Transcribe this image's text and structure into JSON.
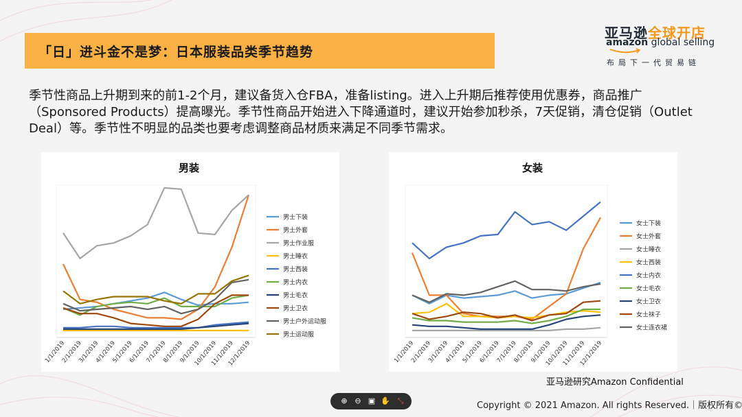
{
  "title": "「日」进斗金不是梦：日本服装品类季节趋势",
  "logo": {
    "cn_part1": "亚马逊",
    "cn_part2": "全球开店",
    "en_brand": "amazon",
    "en_rest": " global selling",
    "tagline": "布局下一代贸易链"
  },
  "body_text": "季节性商品上升期到来的前1-2个月，建议备货入仓FBA，准备listing。进入上升期后推荐使用优惠券，商品推广（Sponsored Products）提高曝光。季节性商品开始进入下降通道时，建议开始参加秒杀，7天促销，清仓促销（Outlet Deal）等。季节性不明显的品类也要考虑调整商品材质来满足不同季节需求。",
  "confidential": "亚马逊研究Amazon Confidential",
  "copyright": "Copyright © 2021 Amazon. All rights Reserved.｜版权所有© 2021",
  "toolbar": {
    "zoom_in": "⊕",
    "zoom_out": "⊖",
    "fit": "▣",
    "hand": "✋",
    "fullscreen": "⤡"
  },
  "chart_data": [
    {
      "type": "line",
      "title": "男装",
      "categories": [
        "1/1/2019",
        "2/1/2019",
        "3/1/2019",
        "4/1/2019",
        "5/1/2019",
        "6/1/2019",
        "7/1/2019",
        "8/1/2019",
        "9/1/2019",
        "10/1/2019",
        "11/1/2019",
        "12/1/2019"
      ],
      "ylim": [
        0,
        100
      ],
      "legend_position": "right",
      "series": [
        {
          "name": "男士下装",
          "color": "#5b9bd5",
          "values": [
            16,
            17,
            18,
            20,
            22,
            24,
            28,
            23,
            19,
            20,
            20,
            21
          ]
        },
        {
          "name": "男士外套",
          "color": "#ed7d31",
          "values": [
            48,
            23,
            21,
            16,
            13,
            10,
            10,
            9,
            16,
            32,
            60,
            97
          ]
        },
        {
          "name": "男士作业服",
          "color": "#a5a5a5",
          "values": [
            70,
            52,
            61,
            63,
            68,
            76,
            102,
            101,
            70,
            69,
            86,
            97
          ]
        },
        {
          "name": "男士睡衣",
          "color": "#ffc000",
          "values": [
            1,
            1,
            1,
            1,
            1,
            1,
            1,
            1,
            1,
            1,
            1,
            1
          ]
        },
        {
          "name": "男士西装",
          "color": "#4472c4",
          "values": [
            3,
            3,
            4,
            4,
            3,
            3,
            3,
            3,
            3,
            5,
            6,
            7
          ]
        },
        {
          "name": "男士内衣",
          "color": "#70ad47",
          "values": [
            17,
            12,
            18,
            20,
            21,
            20,
            24,
            18,
            18,
            18,
            24,
            26
          ]
        },
        {
          "name": "男士毛衣",
          "color": "#264478",
          "values": [
            2,
            2,
            2,
            2,
            2,
            2,
            2,
            2,
            3,
            4,
            5,
            6
          ]
        },
        {
          "name": "男士卫衣",
          "color": "#9e480e",
          "values": [
            17,
            13,
            13,
            10,
            6,
            5,
            4,
            4,
            9,
            20,
            26,
            26
          ]
        },
        {
          "name": "男士户外运动服",
          "color": "#636363",
          "values": [
            20,
            15,
            16,
            17,
            18,
            16,
            18,
            13,
            16,
            23,
            35,
            37
          ]
        },
        {
          "name": "男士运动服",
          "color": "#997300",
          "values": [
            29,
            20,
            23,
            25,
            25,
            25,
            22,
            20,
            27,
            27,
            36,
            40
          ]
        }
      ]
    },
    {
      "type": "line",
      "title": "女装",
      "categories": [
        "1/1/2019",
        "2/1/2019",
        "3/1/2019",
        "4/1/2019",
        "5/1/2019",
        "6/1/2019",
        "7/1/2019",
        "8/1/2019",
        "9/1/2019",
        "10/1/2019",
        "11/1/2019",
        "12/1/2019"
      ],
      "ylim": [
        0,
        100
      ],
      "legend_position": "right",
      "series": [
        {
          "name": "女士下装",
          "color": "#5b9bd5",
          "values": [
            26,
            20,
            26,
            24,
            25,
            26,
            29,
            24,
            26,
            27,
            31,
            35
          ]
        },
        {
          "name": "女士外套",
          "color": "#ed7d31",
          "values": [
            56,
            26,
            26,
            13,
            11,
            11,
            11,
            9,
            18,
            27,
            59,
            81
          ]
        },
        {
          "name": "女士睡衣",
          "color": "#a5a5a5",
          "values": [
            1,
            1,
            1,
            1,
            1,
            1,
            1,
            1,
            1,
            2,
            2,
            3
          ]
        },
        {
          "name": "女士西装",
          "color": "#ffc000",
          "values": [
            13,
            14,
            20,
            11,
            11,
            10,
            11,
            10,
            12,
            14,
            15,
            14
          ]
        },
        {
          "name": "女士内衣",
          "color": "#4472c4",
          "values": [
            63,
            52,
            60,
            63,
            68,
            69,
            85,
            76,
            78,
            72,
            82,
            92
          ]
        },
        {
          "name": "女士毛衣",
          "color": "#70ad47",
          "values": [
            10,
            8,
            8,
            7,
            7,
            7,
            8,
            6,
            8,
            11,
            16,
            16
          ]
        },
        {
          "name": "女士卫衣",
          "color": "#264478",
          "values": [
            5,
            4,
            4,
            3,
            2,
            2,
            2,
            2,
            5,
            9,
            11,
            12
          ]
        },
        {
          "name": "女士袜子",
          "color": "#9e480e",
          "values": [
            13,
            9,
            11,
            14,
            13,
            10,
            12,
            8,
            12,
            13,
            21,
            22
          ]
        },
        {
          "name": "女士连衣裙",
          "color": "#636363",
          "values": [
            26,
            21,
            27,
            26,
            28,
            32,
            36,
            30,
            30,
            29,
            32,
            34
          ]
        }
      ]
    }
  ]
}
